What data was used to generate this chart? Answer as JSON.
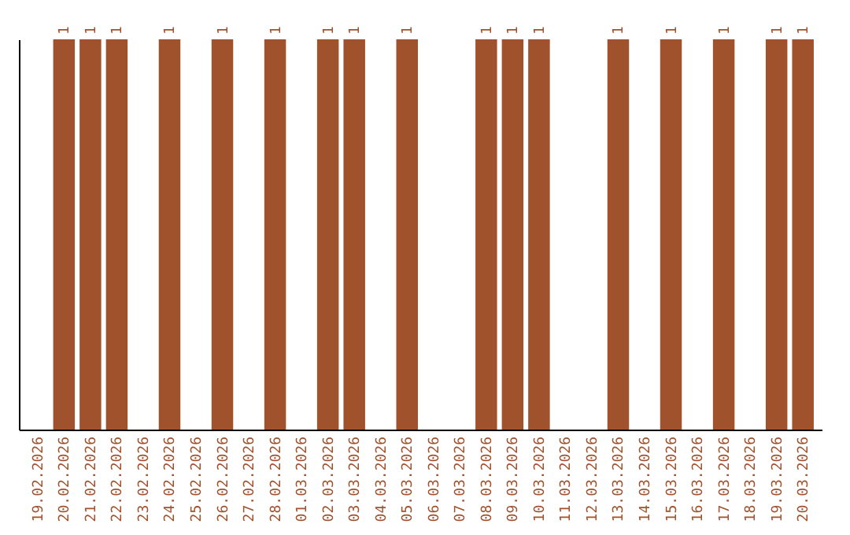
{
  "chart_data": {
    "type": "bar",
    "categories": [
      "19.02.2026",
      "20.02.2026",
      "21.02.2026",
      "22.02.2026",
      "23.02.2026",
      "24.02.2026",
      "25.02.2026",
      "26.02.2026",
      "27.02.2026",
      "28.02.2026",
      "01.03.2026",
      "02.03.2026",
      "03.03.2026",
      "04.03.2026",
      "05.03.2026",
      "06.03.2026",
      "07.03.2026",
      "08.03.2026",
      "09.03.2026",
      "10.03.2026",
      "11.03.2026",
      "12.03.2026",
      "13.03.2026",
      "14.03.2026",
      "15.03.2026",
      "16.03.2026",
      "17.03.2026",
      "18.03.2026",
      "19.03.2026",
      "20.03.2026"
    ],
    "values": [
      null,
      1,
      1,
      1,
      null,
      1,
      null,
      1,
      null,
      1,
      null,
      1,
      1,
      null,
      1,
      null,
      null,
      1,
      1,
      1,
      null,
      null,
      1,
      null,
      1,
      null,
      1,
      null,
      1,
      1
    ],
    "color": "#a0522d",
    "data_labels": true
  }
}
